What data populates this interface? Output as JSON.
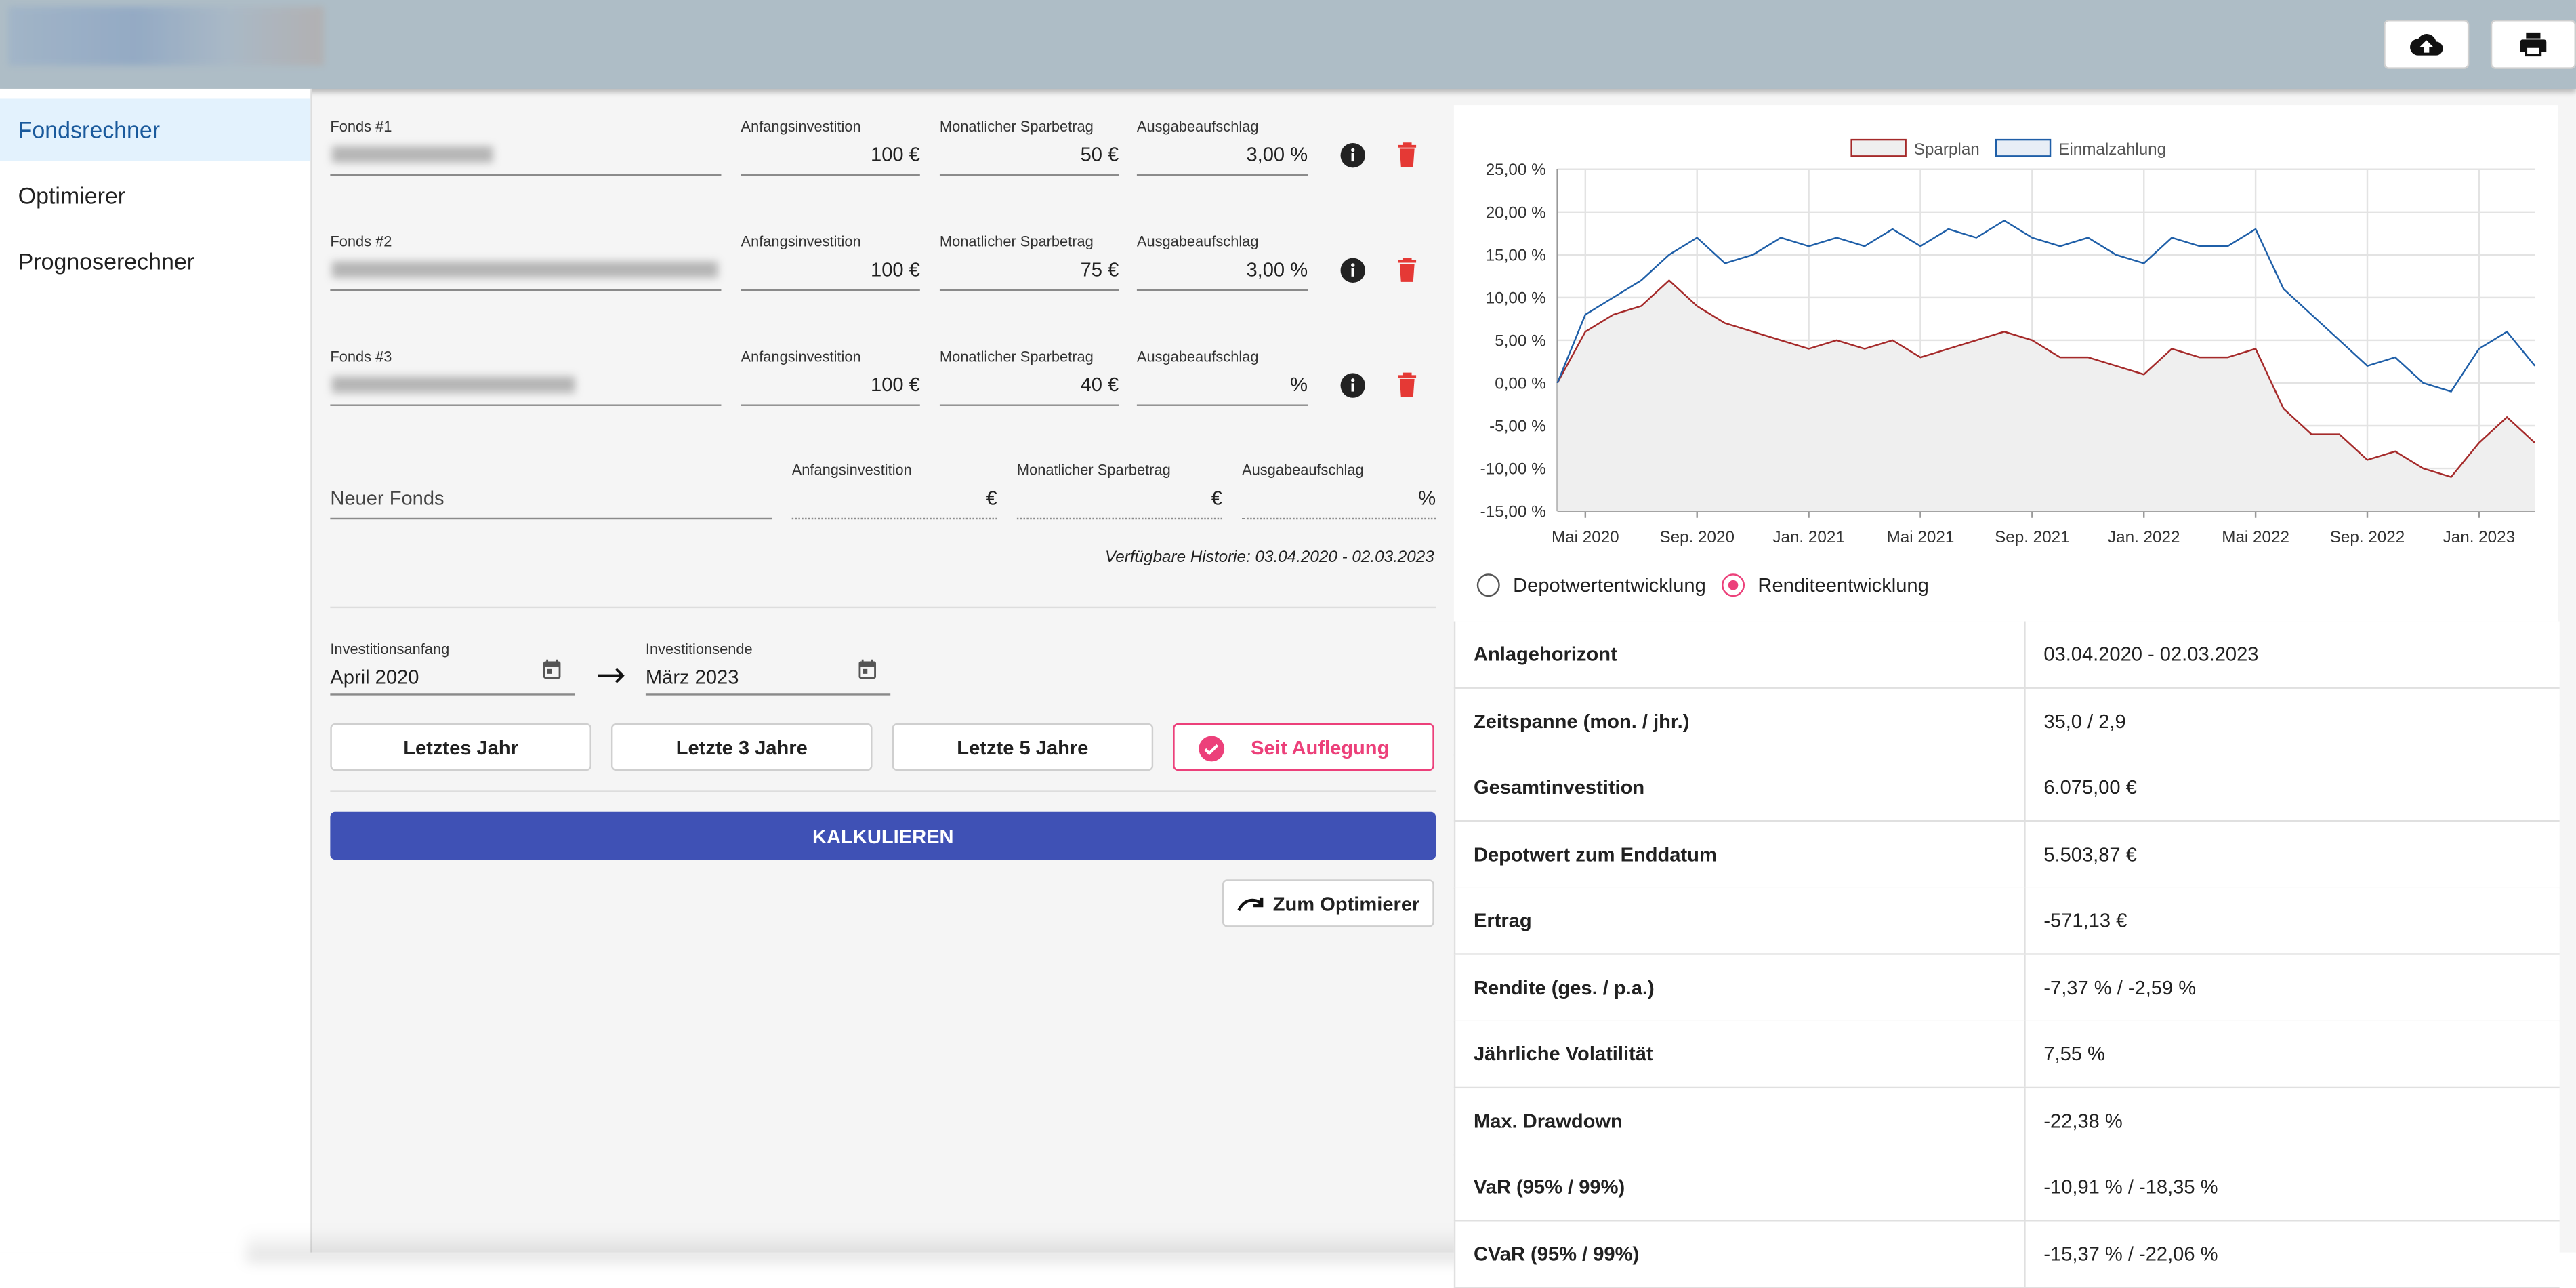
{
  "nav": {
    "items": [
      "Fondsrechner",
      "Optimierer",
      "Prognoserechner"
    ]
  },
  "funds": [
    {
      "label": "Fonds #1",
      "fields": [
        {
          "label": "Anfangsinvestition",
          "value": "100 €"
        },
        {
          "label": "Monatlicher Sparbetrag",
          "value": "50 €"
        },
        {
          "label": "Ausgabeaufschlag",
          "value": "3,00 %"
        }
      ]
    },
    {
      "label": "Fonds #2",
      "fields": [
        {
          "label": "Anfangsinvestition",
          "value": "100 €"
        },
        {
          "label": "Monatlicher Sparbetrag",
          "value": "75 €"
        },
        {
          "label": "Ausgabeaufschlag",
          "value": "3,00 %"
        }
      ]
    },
    {
      "label": "Fonds #3",
      "fields": [
        {
          "label": "Anfangsinvestition",
          "value": "100 €"
        },
        {
          "label": "Monatlicher Sparbetrag",
          "value": "40 €"
        },
        {
          "label": "Ausgabeaufschlag",
          "value": "%"
        }
      ]
    }
  ],
  "new_fund": {
    "placeholder": "Neuer Fonds",
    "fields": [
      {
        "label": "Anfangsinvestition",
        "unit": "€"
      },
      {
        "label": "Monatlicher Sparbetrag",
        "unit": "€"
      },
      {
        "label": "Ausgabeaufschlag",
        "unit": "%"
      }
    ]
  },
  "history": "Verfügbare Historie: 03.04.2020 - 02.03.2023",
  "dates": {
    "start_label": "Investitionsanfang",
    "start": "April 2020",
    "end_label": "Investitionsende",
    "end": "März 2023"
  },
  "ranges": [
    "Letztes Jahr",
    "Letzte 3 Jahre",
    "Letzte 5 Jahre",
    "Seit Auflegung"
  ],
  "calc": "KALKULIEREN",
  "optimizer": "Zum Optimierer",
  "radios": [
    "Depotwertentwicklung",
    "Renditeentwicklung"
  ],
  "chart_data": {
    "type": "line",
    "x": [
      "2020-04",
      "2020-05",
      "2020-06",
      "2020-07",
      "2020-08",
      "2020-09",
      "2020-10",
      "2020-11",
      "2020-12",
      "2021-01",
      "2021-02",
      "2021-03",
      "2021-04",
      "2021-05",
      "2021-06",
      "2021-07",
      "2021-08",
      "2021-09",
      "2021-10",
      "2021-11",
      "2021-12",
      "2022-01",
      "2022-02",
      "2022-03",
      "2022-04",
      "2022-05",
      "2022-06",
      "2022-07",
      "2022-08",
      "2022-09",
      "2022-10",
      "2022-11",
      "2022-12",
      "2023-01",
      "2023-02",
      "2023-03"
    ],
    "series": [
      {
        "name": "Sparplan",
        "color": "#a52a2a",
        "fill": "#efefef",
        "values": [
          0,
          6,
          8,
          9,
          12,
          9,
          7,
          6,
          5,
          4,
          5,
          4,
          5,
          3,
          4,
          5,
          6,
          5,
          3,
          3,
          2,
          1,
          4,
          3,
          3,
          4,
          -3,
          -6,
          -6,
          -9,
          -8,
          -10,
          -11,
          -7,
          -4,
          -7
        ]
      },
      {
        "name": "Einmalzahlung",
        "color": "#1f5fa8",
        "values": [
          0,
          8,
          10,
          12,
          15,
          17,
          14,
          15,
          17,
          16,
          17,
          16,
          18,
          16,
          18,
          17,
          19,
          17,
          16,
          17,
          15,
          14,
          17,
          16,
          16,
          18,
          11,
          8,
          5,
          2,
          3,
          0,
          -1,
          4,
          6,
          2
        ]
      }
    ],
    "xlim": [
      "2020-04",
      "2023-03"
    ],
    "xticks": [
      {
        "value": "2020-05",
        "label": "Mai 2020"
      },
      {
        "value": "2020-09",
        "label": "Sep. 2020"
      },
      {
        "value": "2021-01",
        "label": "Jan. 2021"
      },
      {
        "value": "2021-05",
        "label": "Mai 2021"
      },
      {
        "value": "2021-09",
        "label": "Sep. 2021"
      },
      {
        "value": "2022-01",
        "label": "Jan. 2022"
      },
      {
        "value": "2022-05",
        "label": "Mai 2022"
      },
      {
        "value": "2022-09",
        "label": "Sep. 2022"
      },
      {
        "value": "2023-01",
        "label": "Jan. 2023"
      }
    ],
    "ylim": [
      -15,
      25
    ],
    "yticks": [
      {
        "value": -15,
        "label": "-15,00 %"
      },
      {
        "value": -10,
        "label": "-10,00 %"
      },
      {
        "value": -5,
        "label": "-5,00 %"
      },
      {
        "value": 0,
        "label": "0,00 %"
      },
      {
        "value": 5,
        "label": "5,00 %"
      },
      {
        "value": 10,
        "label": "10,00 %"
      },
      {
        "value": 15,
        "label": "15,00 %"
      },
      {
        "value": 20,
        "label": "20,00 %"
      },
      {
        "value": 25,
        "label": "25,00 %"
      }
    ],
    "grid": true,
    "legend": "top"
  },
  "table": {
    "rows": [
      [
        "Anlagehorizont",
        "03.04.2020 - 02.03.2023"
      ],
      [
        "Zeitspanne (mon. / jhr.)",
        "35,0 / 2,9"
      ],
      [
        "Gesamtinvestition",
        "6.075,00 €"
      ],
      [
        "Depotwert zum Enddatum",
        "5.503,87 €"
      ],
      [
        "Ertrag",
        "-571,13 €"
      ],
      [
        "Rendite (ges. / p.a.)",
        "-7,37 % / -2,59 %"
      ],
      [
        "Jährliche Volatilität",
        "7,55 %"
      ],
      [
        "Max. Drawdown",
        "-22,38 %"
      ],
      [
        "VaR (95% / 99%)",
        "-10,91 % / -18,35 %"
      ],
      [
        "CVaR (95% / 99%)",
        "-15,37 % / -22,06 %"
      ]
    ]
  }
}
